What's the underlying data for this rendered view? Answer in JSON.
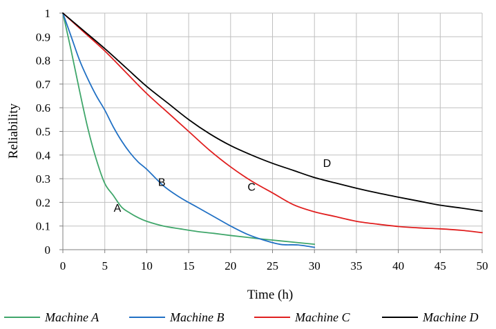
{
  "chart_data": {
    "type": "line",
    "title": "",
    "xlabel": "Time (h)",
    "ylabel": "Reliability",
    "xlim": [
      0,
      50
    ],
    "ylim": [
      0,
      1
    ],
    "x_ticks": [
      "0",
      "5",
      "10",
      "15",
      "20",
      "25",
      "30",
      "35",
      "40",
      "45",
      "50"
    ],
    "y_ticks": [
      "0",
      "0.1",
      "0.2",
      "0.3",
      "0.4",
      "0.5",
      "0.6",
      "0.7",
      "0.8",
      "0.9",
      "1"
    ],
    "grid": true,
    "legend_position": "bottom",
    "series": [
      {
        "name": "Machine A",
        "color": "#3fa66a",
        "x": [
          0,
          1,
          2,
          3,
          4,
          5,
          6,
          7,
          8,
          9,
          10,
          12,
          14,
          16,
          18,
          20,
          22,
          24,
          26,
          28,
          30
        ],
        "y": [
          1,
          0.84,
          0.67,
          0.51,
          0.38,
          0.28,
          0.23,
          0.18,
          0.155,
          0.135,
          0.12,
          0.1,
          0.088,
          0.077,
          0.069,
          0.06,
          0.052,
          0.044,
          0.037,
          0.03,
          0.023
        ]
      },
      {
        "name": "Machine B",
        "color": "#2070c4",
        "x": [
          0,
          1,
          2,
          3,
          4,
          5,
          6,
          7,
          8,
          9,
          10,
          12,
          14,
          16,
          18,
          20,
          22,
          24,
          26,
          28,
          30
        ],
        "y": [
          1,
          0.9,
          0.8,
          0.72,
          0.65,
          0.59,
          0.52,
          0.46,
          0.41,
          0.37,
          0.34,
          0.27,
          0.22,
          0.18,
          0.14,
          0.1,
          0.065,
          0.04,
          0.022,
          0.02,
          0.01
        ]
      },
      {
        "name": "Machine C",
        "color": "#e01e1e",
        "x": [
          0,
          2.5,
          5,
          7.5,
          10,
          12.5,
          15,
          17.5,
          20,
          22.5,
          25,
          27.5,
          30,
          32.5,
          35,
          37.5,
          40,
          42.5,
          45,
          47.5,
          50
        ],
        "y": [
          1,
          0.92,
          0.84,
          0.75,
          0.66,
          0.58,
          0.5,
          0.42,
          0.35,
          0.29,
          0.24,
          0.19,
          0.16,
          0.14,
          0.12,
          0.108,
          0.098,
          0.092,
          0.088,
          0.082,
          0.072
        ]
      },
      {
        "name": "Machine D",
        "color": "#000000",
        "x": [
          0,
          2.5,
          5,
          7.5,
          10,
          12.5,
          15,
          17.5,
          20,
          22.5,
          25,
          27.5,
          30,
          32.5,
          35,
          37.5,
          40,
          42.5,
          45,
          47.5,
          50
        ],
        "y": [
          1,
          0.925,
          0.85,
          0.77,
          0.69,
          0.62,
          0.55,
          0.49,
          0.44,
          0.4,
          0.365,
          0.335,
          0.305,
          0.282,
          0.26,
          0.24,
          0.222,
          0.205,
          0.188,
          0.176,
          0.163
        ]
      }
    ],
    "annotations": [
      {
        "text": "A",
        "x": 6.5,
        "y": 0.16
      },
      {
        "text": "B",
        "x": 11.8,
        "y": 0.27
      },
      {
        "text": "C",
        "x": 22.5,
        "y": 0.25
      },
      {
        "text": "D",
        "x": 31.5,
        "y": 0.35
      }
    ]
  }
}
